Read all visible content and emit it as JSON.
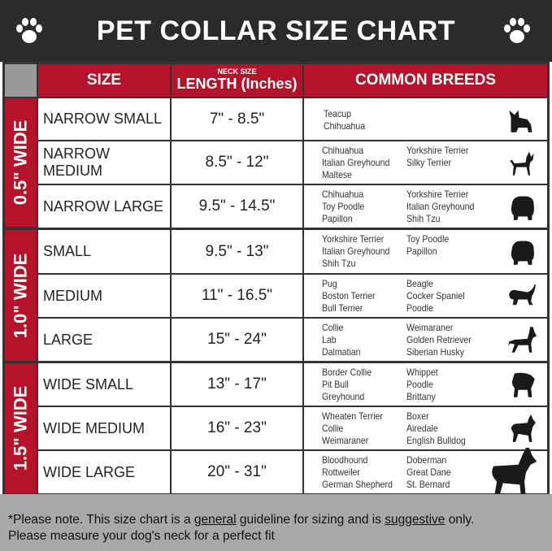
{
  "title": "PET COLLAR SIZE CHART",
  "header": {
    "size": "SIZE",
    "neck_size": "NECK SIZE",
    "length": "LENGTH (Inches)",
    "breeds": "COMMON BREEDS"
  },
  "groups": [
    {
      "label": "0.5\" WIDE"
    },
    {
      "label": "1.0\" WIDE"
    },
    {
      "label": "1.5\" WIDE"
    }
  ],
  "rows": [
    {
      "size": "NARROW SMALL",
      "length": "7\" - 8.5\"",
      "col1": [
        "Teacup",
        "Chihuahua"
      ],
      "col2": [],
      "icon": "small-dog-icon"
    },
    {
      "size": "NARROW MEDIUM",
      "length": "8.5\" - 12\"",
      "col1": [
        "Chihuahua",
        "Italian Greyhound",
        "Maltese"
      ],
      "col2": [
        "Yorkshire Terrier",
        "Silky Terrier"
      ],
      "icon": "chihuahua-icon"
    },
    {
      "size": "NARROW LARGE",
      "length": "9.5\" - 14.5\"",
      "col1": [
        "Chihuahua",
        "Toy Poodle",
        "Papillon"
      ],
      "col2": [
        "Yorkshire Terrier",
        "Italian Greyhound",
        "Shih Tzu"
      ],
      "icon": "fluffy-dog-icon"
    },
    {
      "size": "SMALL",
      "length": "9.5\" - 13\"",
      "col1": [
        "Yorkshire Terrier",
        "Italian Greyhound",
        "Shih Tzu"
      ],
      "col2": [
        "Toy Poodle",
        "Papillon"
      ],
      "icon": "fluffy-dog-icon"
    },
    {
      "size": "MEDIUM",
      "length": "11\" - 16.5\"",
      "col1": [
        "Pug",
        "Boston Terrier",
        "Bull Terrier"
      ],
      "col2": [
        "Beagle",
        "Cocker Spaniel",
        "Poodle"
      ],
      "icon": "beagle-icon"
    },
    {
      "size": "LARGE",
      "length": "15\" - 24\"",
      "col1": [
        "Collie",
        "Lab",
        "Dalmatian"
      ],
      "col2": [
        "Weimaraner",
        "Golden Retriever",
        "Siberian Husky"
      ],
      "icon": "shepherd-dog-icon"
    },
    {
      "size": "WIDE SMALL",
      "length": "13\" - 17\"",
      "col1": [
        "Border Collie",
        "Pit Bull",
        "Greyhound"
      ],
      "col2": [
        "Whippet",
        "Poodle",
        "Brittany"
      ],
      "icon": "bulldog-icon"
    },
    {
      "size": "WIDE MEDIUM",
      "length": "16\" - 23\"",
      "col1": [
        "Wheaten Terrier",
        "Collie",
        "Weimaraner"
      ],
      "col2": [
        "Boxer",
        "Airedale",
        "English Bulldog"
      ],
      "icon": "pitbull-icon"
    },
    {
      "size": "WIDE LARGE",
      "length": "20\" - 31\"",
      "col1": [
        "Bloodhound",
        "Rottweiler",
        "German Shepherd"
      ],
      "col2": [
        "Doberman",
        "Great Dane",
        "St. Bernard"
      ],
      "icon": "doberman-icon"
    }
  ],
  "footer": {
    "line1_a": "*Please note. This size chart is a ",
    "line1_b": "general",
    "line1_c": " guideline for sizing and is ",
    "line1_d": "suggestive",
    "line1_e": " only.",
    "line2": "Please measure your dog's neck for a perfect fit"
  },
  "colors": {
    "red": "#b5122b",
    "dark": "#2b2b2b",
    "footer": "#a9a9a9"
  }
}
